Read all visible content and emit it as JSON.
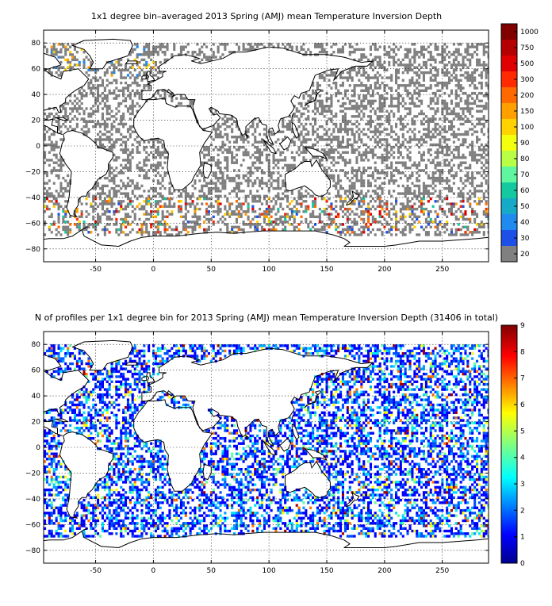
{
  "maps": [
    {
      "title": "1x1 degree bin–averaged 2013 Spring (AMJ) mean Temperature Inversion Depth",
      "lon_range": [
        -95,
        290
      ],
      "lat_range": [
        -90,
        90
      ],
      "x_ticks": [
        "-50",
        "0",
        "50",
        "100",
        "150",
        "200",
        "250"
      ],
      "x_tick_values": [
        -50,
        0,
        50,
        100,
        150,
        200,
        250
      ],
      "y_ticks": [
        "80",
        "60",
        "40",
        "20",
        "0",
        "−20",
        "−40",
        "−60",
        "−80"
      ],
      "y_tick_values": [
        80,
        60,
        40,
        20,
        0,
        -20,
        -40,
        -60,
        -80
      ],
      "colorbar": {
        "labels": [
          "1000",
          "750",
          "500",
          "300",
          "200",
          "150",
          "100",
          "90",
          "80",
          "70",
          "60",
          "50",
          "40",
          "30",
          "20"
        ],
        "colors": [
          "#800000",
          "#b40000",
          "#e10000",
          "#ff2a00",
          "#ff6a00",
          "#ff9f00",
          "#ffd200",
          "#f4ff0e",
          "#b8ff45",
          "#5ef7a0",
          "#14c8a0",
          "#16a9c8",
          "#1f8af0",
          "#1c50e6",
          "#808080"
        ]
      }
    },
    {
      "title": "N of profiles per 1x1 degree bin for 2013 Spring (AMJ) mean Temperature Inversion Depth  (31406 in total)",
      "lon_range": [
        -95,
        290
      ],
      "lat_range": [
        -90,
        90
      ],
      "x_ticks": [
        "-50",
        "0",
        "50",
        "100",
        "150",
        "200",
        "250"
      ],
      "x_tick_values": [
        -50,
        0,
        50,
        100,
        150,
        200,
        250
      ],
      "y_ticks": [
        "80",
        "60",
        "40",
        "20",
        "0",
        "−20",
        "−40",
        "−60",
        "−80"
      ],
      "y_tick_values": [
        80,
        60,
        40,
        20,
        0,
        -20,
        -40,
        -60,
        -80
      ],
      "colorbar": {
        "labels": [
          "9",
          "8",
          "7",
          "6",
          "5",
          "4",
          "3",
          "2",
          "1",
          "0"
        ],
        "range": [
          0,
          9
        ],
        "colors": [
          "#00008f",
          "#0000ff",
          "#0070ff",
          "#00dfff",
          "#50ffaf",
          "#bfff40",
          "#ffcf00",
          "#ff6000",
          "#ef0000",
          "#800000"
        ]
      }
    }
  ]
}
